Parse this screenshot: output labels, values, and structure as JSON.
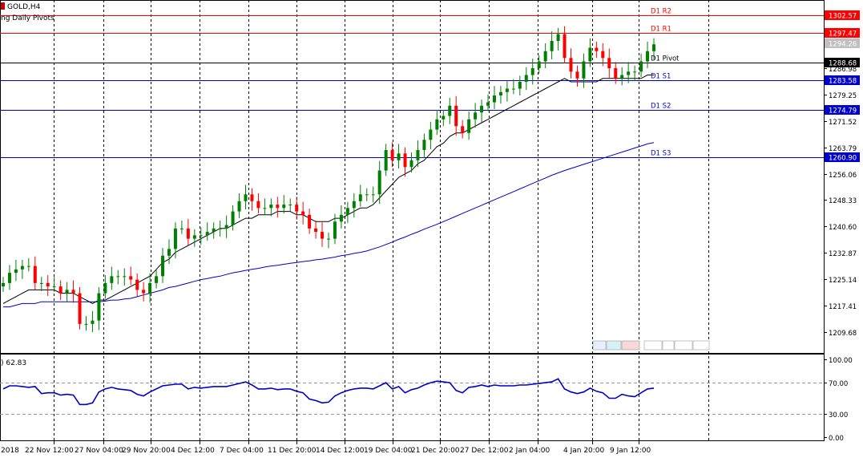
{
  "header": {
    "symbol_timeframe": "GOLD,H4",
    "indicator_label": "ng Daily Pivots",
    "rsi_value_label": ") 62.83"
  },
  "colors": {
    "background": "#ffffff",
    "bull_candle": "#008000",
    "bear_candle": "#ff0000",
    "resistance": "#ff0000",
    "support": "#0000cc",
    "pivot": "#000000",
    "ma_fast": "#000000",
    "ma_slow": "#0000cc",
    "rsi_line": "#0000cc",
    "grid": "#000000"
  },
  "chart_data": [
    {
      "type": "candlestick",
      "y_axis_ticks": [
        "1302.57",
        "1297.47",
        "1294.26",
        "1288.68",
        "1286.98",
        "1283.58",
        "1279.25",
        "1274.79",
        "1271.52",
        "1263.79",
        "1256.06",
        "1248.33",
        "1240.60",
        "1232.87",
        "1225.14",
        "1217.41",
        "1209.68"
      ],
      "ylim": [
        1203.5,
        1307
      ],
      "x_tick_labels": [
        "2018",
        "22 Nov 12:00",
        "27 Nov 04:00",
        "29 Nov 20:00",
        "4 Dec 12:00",
        "7 Dec 04:00",
        "11 Dec 20:00",
        "14 Dec 12:00",
        "19 Dec 04:00",
        "21 Dec 20:00",
        "27 Dec 12:00",
        "2 Jan 04:00",
        "4 Jan 20:00",
        "9 Jan 12:00"
      ],
      "price_boxes": [
        {
          "label": "1302.57",
          "value": 1302.57,
          "style": "red"
        },
        {
          "label": "1297.47",
          "value": 1297.47,
          "style": "red"
        },
        {
          "label": "1294.26",
          "value": 1294.26,
          "style": "grey"
        },
        {
          "label": "1288.68",
          "value": 1288.68,
          "style": "black"
        },
        {
          "label": "1283.58",
          "value": 1283.58,
          "style": "blue"
        },
        {
          "label": "1274.79",
          "value": 1274.79,
          "style": "blue"
        },
        {
          "label": "1260.90",
          "value": 1260.9,
          "style": "blue"
        }
      ],
      "pivot_levels": [
        {
          "label": "D1 R2",
          "value": 1302.57,
          "kind": "resistance"
        },
        {
          "label": "D1 R1",
          "value": 1297.47,
          "kind": "resistance"
        },
        {
          "label": "D1 Pivot",
          "value": 1288.68,
          "kind": "pivot"
        },
        {
          "label": "D1 S1",
          "value": 1283.58,
          "kind": "support"
        },
        {
          "label": "D1 S2",
          "value": 1274.79,
          "kind": "support"
        },
        {
          "label": "D1 S3",
          "value": 1260.9,
          "kind": "support"
        }
      ],
      "close_series": [
        1224,
        1227,
        1228,
        1229,
        1229,
        1224,
        1224,
        1223,
        1223,
        1221,
        1222,
        1221,
        1212,
        1212,
        1213,
        1221,
        1224,
        1226,
        1226,
        1226,
        1225,
        1222,
        1221,
        1224,
        1226,
        1232,
        1234,
        1240,
        1240,
        1237,
        1238,
        1238,
        1239,
        1240,
        1240,
        1241,
        1245,
        1248,
        1250,
        1248,
        1246,
        1246,
        1247,
        1246,
        1247,
        1247,
        1245,
        1244,
        1240,
        1239,
        1237,
        1237,
        1242,
        1244,
        1246,
        1248,
        1250,
        1250,
        1250,
        1257,
        1263,
        1260,
        1262,
        1258,
        1260,
        1263,
        1266,
        1269,
        1272,
        1273,
        1276,
        1270,
        1268,
        1272,
        1274,
        1276,
        1277,
        1279,
        1280,
        1281,
        1281,
        1283,
        1285,
        1287,
        1289,
        1292,
        1295,
        1297,
        1290,
        1286,
        1284,
        1289,
        1293,
        1292,
        1290,
        1287,
        1284,
        1285,
        1286,
        1286,
        1289,
        1292,
        1294
      ],
      "ma_fast": [
        1218,
        1219,
        1220,
        1221,
        1222,
        1222,
        1222,
        1222,
        1222,
        1221,
        1221,
        1221,
        1220,
        1219,
        1218,
        1219,
        1219,
        1220,
        1221,
        1222,
        1223,
        1224,
        1225,
        1226,
        1228,
        1230,
        1231,
        1233,
        1234,
        1235,
        1236,
        1237,
        1238,
        1239,
        1240,
        1240,
        1241,
        1242,
        1243,
        1243,
        1244,
        1244,
        1244,
        1245,
        1245,
        1245,
        1244,
        1244,
        1243,
        1242,
        1242,
        1242,
        1243,
        1243,
        1244,
        1245,
        1246,
        1246,
        1247,
        1249,
        1251,
        1253,
        1255,
        1256,
        1257,
        1259,
        1260,
        1262,
        1264,
        1265,
        1267,
        1268,
        1268,
        1269,
        1270,
        1271,
        1272,
        1273,
        1274,
        1275,
        1276,
        1277,
        1278,
        1279,
        1280,
        1281,
        1282,
        1283,
        1284,
        1283,
        1283,
        1283,
        1283,
        1283,
        1284,
        1284,
        1284,
        1284,
        1284,
        1284,
        1284,
        1285,
        1285
      ],
      "ma_slow": [
        1217,
        1217,
        1217.5,
        1218,
        1218,
        1218,
        1218.5,
        1218.5,
        1218.5,
        1218.5,
        1218.5,
        1218.5,
        1218.5,
        1218.5,
        1218.5,
        1218.5,
        1218.7,
        1219,
        1219,
        1219.3,
        1219.5,
        1220,
        1220.5,
        1221,
        1221.5,
        1222,
        1222.7,
        1223,
        1223.5,
        1224,
        1224.5,
        1225,
        1225.3,
        1225.7,
        1226,
        1226.5,
        1227,
        1227.3,
        1227.7,
        1228,
        1228.3,
        1228.7,
        1229,
        1229.2,
        1229.5,
        1229.8,
        1230,
        1230.3,
        1230.5,
        1230.8,
        1231,
        1231.3,
        1231.6,
        1232,
        1232.3,
        1232.7,
        1233,
        1233.4,
        1234,
        1234.6,
        1235.3,
        1236,
        1236.8,
        1237.5,
        1238.3,
        1239,
        1239.8,
        1240.5,
        1241.2,
        1242,
        1242.8,
        1243.6,
        1244.4,
        1245.2,
        1246,
        1246.8,
        1247.6,
        1248.4,
        1249.2,
        1250,
        1250.8,
        1251.6,
        1252.4,
        1253.2,
        1254,
        1254.8,
        1255.6,
        1256.3,
        1257,
        1257.6,
        1258.2,
        1258.8,
        1259.4,
        1260,
        1260.6,
        1261.2,
        1261.8,
        1262.4,
        1263,
        1263.6,
        1264.2,
        1264.8,
        1265.2
      ]
    },
    {
      "type": "line",
      "name_label": ") 62.83",
      "y_axis_ticks": [
        "100.00",
        "70.00",
        "30.00",
        "0.00"
      ],
      "ylim": [
        0,
        100
      ],
      "levels": [
        70,
        30
      ],
      "values": [
        62,
        66,
        66,
        65,
        64,
        65,
        56,
        57,
        57,
        54,
        55,
        54,
        42,
        42,
        44,
        58,
        62,
        64,
        62,
        61,
        60,
        55,
        53,
        58,
        62,
        66,
        67,
        68,
        68,
        62,
        64,
        63,
        64,
        65,
        65,
        65,
        67,
        69,
        71,
        67,
        62,
        62,
        63,
        61,
        62,
        62,
        59,
        57,
        49,
        47,
        44,
        45,
        53,
        57,
        60,
        62,
        63,
        63,
        62,
        66,
        70,
        62,
        65,
        57,
        61,
        63,
        67,
        70,
        72,
        71,
        70,
        60,
        57,
        64,
        65,
        67,
        65,
        67,
        66,
        66,
        66,
        67,
        67,
        68,
        69,
        70,
        71,
        75,
        62,
        58,
        56,
        58,
        63,
        59,
        57,
        50,
        50,
        55,
        53,
        52,
        57,
        62,
        63
      ]
    }
  ]
}
